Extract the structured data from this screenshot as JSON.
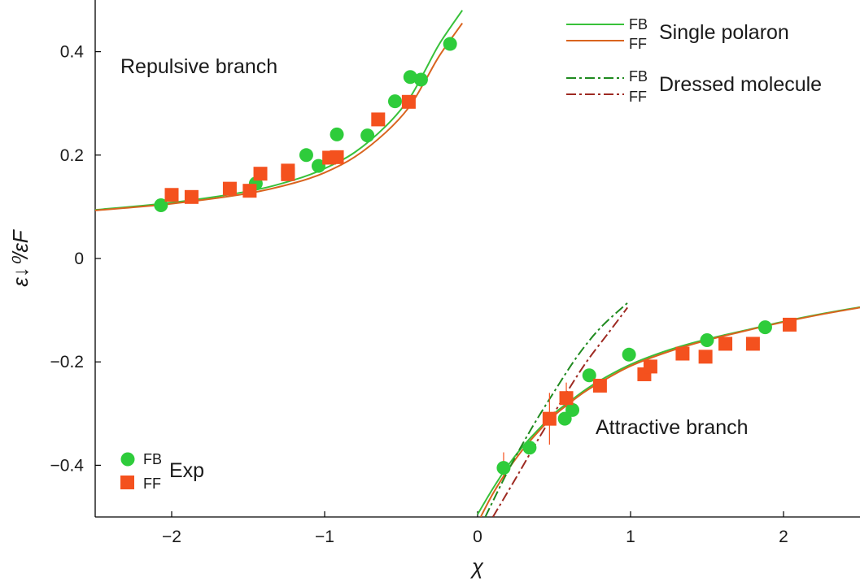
{
  "chart_data": {
    "type": "scatter",
    "xlabel": "χ",
    "ylabel": "ε↓⁰/εF",
    "xlim": [
      -2.5,
      2.5
    ],
    "ylim": [
      -0.5,
      0.5
    ],
    "xticks": [
      -2,
      -1,
      0,
      1,
      2
    ],
    "xtick_labels": [
      "−2",
      "−1",
      "0",
      "1",
      "2"
    ],
    "yticks": [
      0.4,
      0.2,
      0,
      -0.2,
      -0.4
    ],
    "ytick_labels": [
      "0.4",
      "0.2",
      "0",
      "−0.2",
      "−0.4"
    ],
    "grid": false,
    "legend_position": "top-right",
    "colors": {
      "fb_exp": "#2ecc3b",
      "ff_exp": "#f4511e",
      "fb_theory": "#38c13a",
      "ff_theory": "#d9641f",
      "fb_molecule": "#1f8a1f",
      "ff_molecule": "#9e2a22",
      "error_bar": "#f4511e"
    },
    "annotations": {
      "repulsive": "Repulsive branch",
      "attractive": "Attractive branch"
    },
    "legend": {
      "fb": "FB",
      "ff": "FF",
      "single_polaron": "Single polaron",
      "dressed_molecule": "Dressed molecule",
      "exp": "Exp"
    },
    "series": [
      {
        "name": "FB Exp",
        "marker": "circle",
        "points": [
          [
            -2.07,
            0.103
          ],
          [
            -1.45,
            0.145
          ],
          [
            -1.12,
            0.2
          ],
          [
            -1.04,
            0.179
          ],
          [
            -0.92,
            0.24
          ],
          [
            -0.72,
            0.238
          ],
          [
            -0.54,
            0.304
          ],
          [
            -0.44,
            0.351
          ],
          [
            -0.37,
            0.346
          ],
          [
            -0.18,
            0.415
          ],
          [
            0.17,
            -0.405
          ],
          [
            0.34,
            -0.366
          ],
          [
            0.57,
            -0.31
          ],
          [
            0.62,
            -0.293
          ],
          [
            0.73,
            -0.226
          ],
          [
            0.99,
            -0.186
          ],
          [
            1.5,
            -0.158
          ],
          [
            1.88,
            -0.133
          ]
        ]
      },
      {
        "name": "FF Exp",
        "marker": "square",
        "points": [
          [
            -2.0,
            0.123
          ],
          [
            -1.87,
            0.119
          ],
          [
            -1.62,
            0.135
          ],
          [
            -1.49,
            0.131
          ],
          [
            -1.42,
            0.164
          ],
          [
            -1.24,
            0.17
          ],
          [
            -1.24,
            0.163
          ],
          [
            -0.97,
            0.195
          ],
          [
            -0.92,
            0.196
          ],
          [
            -0.65,
            0.269
          ],
          [
            -0.45,
            0.303
          ],
          [
            0.47,
            -0.31
          ],
          [
            0.58,
            -0.27
          ],
          [
            0.8,
            -0.246
          ],
          [
            1.09,
            -0.224
          ],
          [
            1.13,
            -0.209
          ],
          [
            1.34,
            -0.184
          ],
          [
            1.49,
            -0.19
          ],
          [
            1.62,
            -0.165
          ],
          [
            1.8,
            -0.165
          ],
          [
            2.04,
            -0.128
          ]
        ]
      },
      {
        "name": "FB Single polaron",
        "style": "solid",
        "points": [
          [
            -2.5,
            0.094
          ],
          [
            -2.0,
            0.108
          ],
          [
            -1.5,
            0.13
          ],
          [
            -1.2,
            0.152
          ],
          [
            -1.0,
            0.174
          ],
          [
            -0.8,
            0.206
          ],
          [
            -0.6,
            0.256
          ],
          [
            -0.45,
            0.308
          ],
          [
            -0.35,
            0.36
          ],
          [
            -0.25,
            0.415
          ],
          [
            -0.1,
            0.48
          ]
        ]
      },
      {
        "name": "FF Single polaron",
        "style": "solid",
        "points": [
          [
            -2.5,
            0.093
          ],
          [
            -2.0,
            0.106
          ],
          [
            -1.5,
            0.126
          ],
          [
            -1.2,
            0.146
          ],
          [
            -1.0,
            0.166
          ],
          [
            -0.8,
            0.197
          ],
          [
            -0.6,
            0.244
          ],
          [
            -0.45,
            0.292
          ],
          [
            -0.35,
            0.34
          ],
          [
            -0.25,
            0.392
          ],
          [
            -0.1,
            0.455
          ]
        ]
      },
      {
        "name": "FB Single polaron attractive",
        "style": "solid",
        "points": [
          [
            0.0,
            -0.495
          ],
          [
            0.1,
            -0.445
          ],
          [
            0.2,
            -0.4
          ],
          [
            0.3,
            -0.362
          ],
          [
            0.4,
            -0.33
          ],
          [
            0.5,
            -0.3
          ],
          [
            0.6,
            -0.277
          ],
          [
            0.7,
            -0.255
          ],
          [
            0.8,
            -0.236
          ],
          [
            1.0,
            -0.205
          ],
          [
            1.25,
            -0.177
          ],
          [
            1.5,
            -0.156
          ],
          [
            1.75,
            -0.139
          ],
          [
            2.0,
            -0.122
          ],
          [
            2.25,
            -0.107
          ],
          [
            2.5,
            -0.094
          ]
        ]
      },
      {
        "name": "FF Single polaron attractive",
        "style": "solid",
        "points": [
          [
            0.02,
            -0.5
          ],
          [
            0.1,
            -0.455
          ],
          [
            0.2,
            -0.408
          ],
          [
            0.3,
            -0.368
          ],
          [
            0.4,
            -0.334
          ],
          [
            0.5,
            -0.304
          ],
          [
            0.6,
            -0.28
          ],
          [
            0.7,
            -0.258
          ],
          [
            0.8,
            -0.24
          ],
          [
            1.0,
            -0.208
          ],
          [
            1.25,
            -0.18
          ],
          [
            1.5,
            -0.158
          ],
          [
            1.75,
            -0.14
          ],
          [
            2.0,
            -0.123
          ],
          [
            2.25,
            -0.108
          ],
          [
            2.5,
            -0.095
          ]
        ]
      },
      {
        "name": "FB Dressed molecule",
        "style": "dashdot",
        "points": [
          [
            0.05,
            -0.5
          ],
          [
            0.2,
            -0.41
          ],
          [
            0.35,
            -0.33
          ],
          [
            0.5,
            -0.258
          ],
          [
            0.65,
            -0.19
          ],
          [
            0.8,
            -0.135
          ],
          [
            0.98,
            -0.086
          ]
        ]
      },
      {
        "name": "FF Dressed molecule",
        "style": "dashdot",
        "points": [
          [
            0.1,
            -0.5
          ],
          [
            0.25,
            -0.425
          ],
          [
            0.4,
            -0.348
          ],
          [
            0.55,
            -0.275
          ],
          [
            0.7,
            -0.205
          ],
          [
            0.85,
            -0.146
          ],
          [
            0.98,
            -0.095
          ]
        ]
      }
    ],
    "error_bars": [
      {
        "x": 0.47,
        "y_low": -0.36,
        "y_high": -0.26
      },
      {
        "x": 0.58,
        "y_low": -0.3,
        "y_high": -0.24
      },
      {
        "x": 0.17,
        "y_low": -0.425,
        "y_high": -0.375
      }
    ]
  }
}
